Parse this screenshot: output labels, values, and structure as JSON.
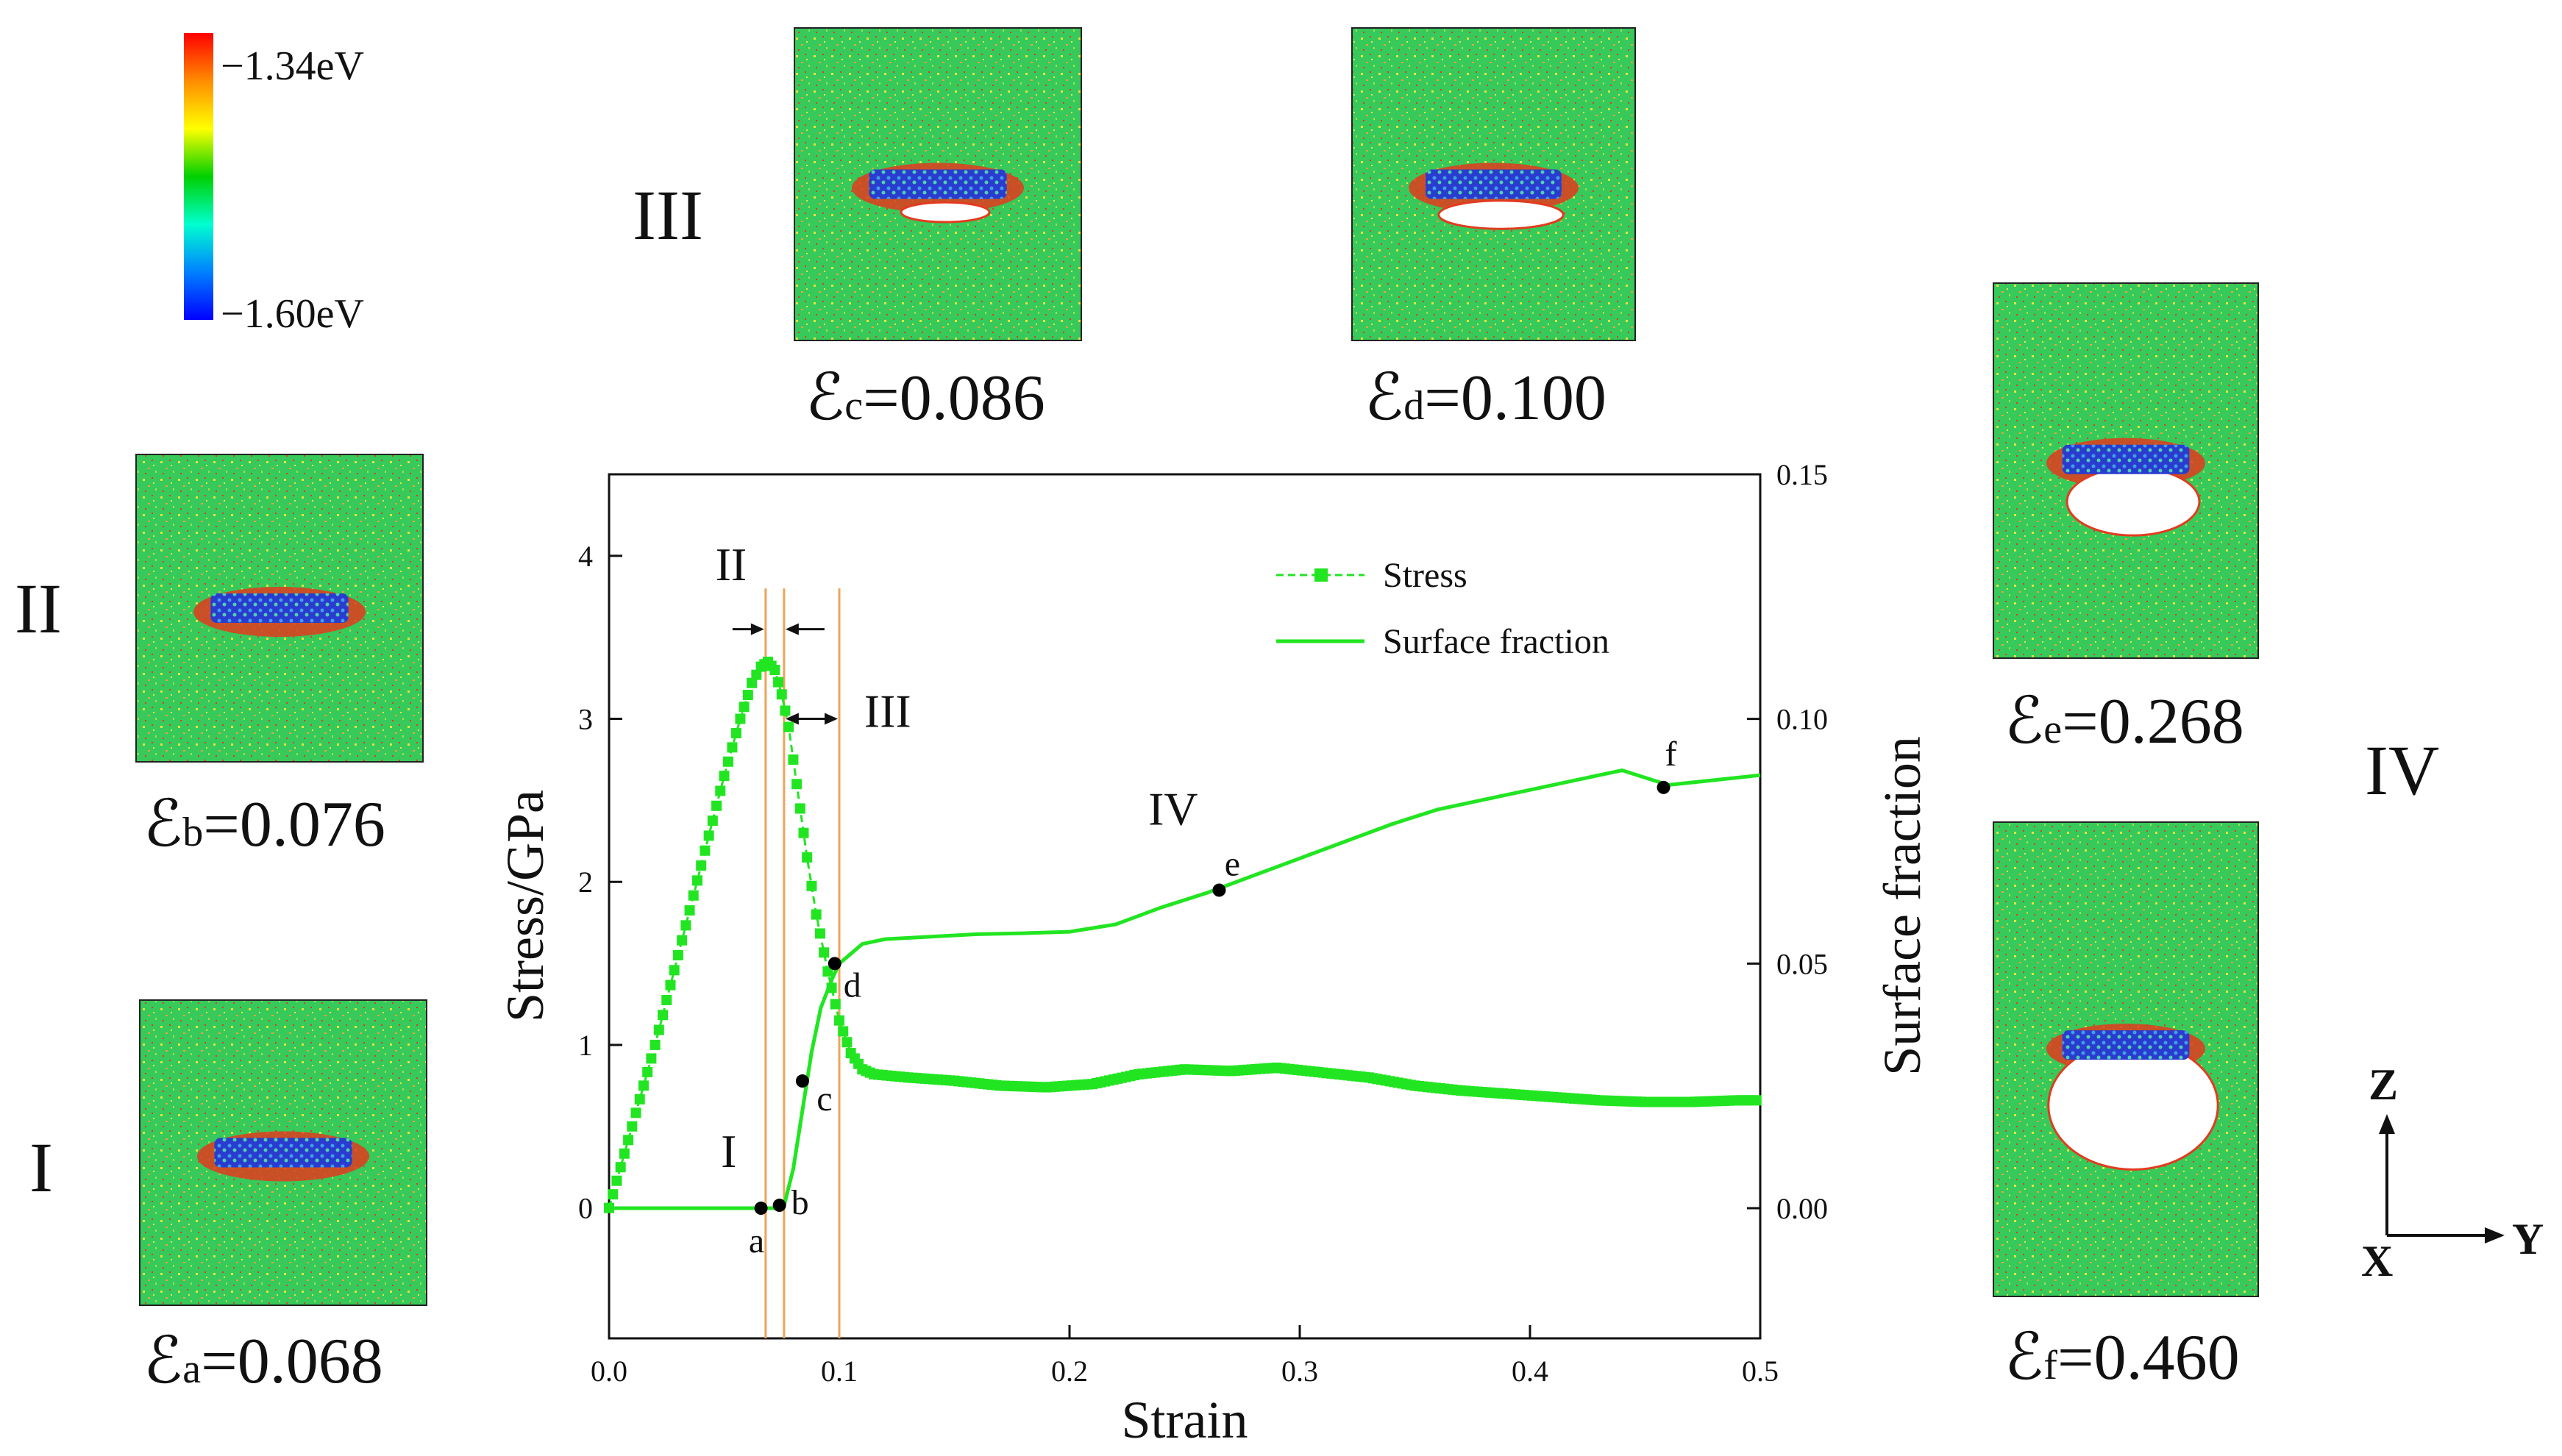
{
  "colors": {
    "curve": "#22e522",
    "marker": "#000000",
    "stage_line": "#f0a35a",
    "axis": "#111111",
    "background": "#ffffff",
    "atom_green": "#37c95a",
    "void": "#ffffff",
    "defect_red": "#e23b1f",
    "cluster_blue": "#2a3ccf"
  },
  "colorbar": {
    "max_label": "−1.34eV",
    "min_label": "−1.60eV",
    "stops": [
      "#ff0000",
      "#ff8c00",
      "#ffff00",
      "#00d000",
      "#00ffd0",
      "#0080ff",
      "#0000ff"
    ]
  },
  "stage_labels": {
    "I": "I",
    "II": "II",
    "III": "III",
    "IV": "IV"
  },
  "snapshots": [
    {
      "id": "a",
      "symbol": "ℰ",
      "subscript": "a",
      "value": "=0.068"
    },
    {
      "id": "b",
      "symbol": "ℰ",
      "subscript": "b",
      "value": "=0.076"
    },
    {
      "id": "c",
      "symbol": "ℰ",
      "subscript": "c",
      "value": "=0.086"
    },
    {
      "id": "d",
      "symbol": "ℰ",
      "subscript": "d",
      "value": "=0.100"
    },
    {
      "id": "e",
      "symbol": "ℰ",
      "subscript": "e",
      "value": "=0.268"
    },
    {
      "id": "f",
      "symbol": "ℰ",
      "subscript": "f",
      "value": "=0.460"
    }
  ],
  "axes_widget": {
    "z": "Z",
    "y": "Y",
    "x": "X"
  },
  "chart_data": {
    "type": "line",
    "title": "",
    "xlabel": "Strain",
    "ylabel": "Stress/GPa",
    "y2label": "Surface fraction",
    "xlim": [
      0.0,
      0.5
    ],
    "ylim": [
      -0.8,
      4.5
    ],
    "y2lim": [
      -0.0266,
      0.15
    ],
    "xticks": [
      0.0,
      0.1,
      0.2,
      0.3,
      0.4,
      0.5
    ],
    "xtick_labels": [
      "0.0",
      "0.1",
      "0.2",
      "0.3",
      "0.4",
      "0.5"
    ],
    "yticks": [
      0,
      1,
      2,
      3,
      4
    ],
    "ytick_labels": [
      "0",
      "1",
      "2",
      "3",
      "4"
    ],
    "y2ticks": [
      0.0,
      0.05,
      0.1,
      0.15
    ],
    "y2tick_labels": [
      "0.00",
      "0.05",
      "0.10",
      "0.15"
    ],
    "legend": {
      "position": "top-right",
      "entries": [
        "Stress",
        "Surface fraction"
      ]
    },
    "series": [
      {
        "name": "Stress",
        "axis": "left",
        "style": "line-square-markers",
        "points": [
          [
            0.0,
            0.0
          ],
          [
            0.01,
            0.5
          ],
          [
            0.02,
            1.0
          ],
          [
            0.03,
            1.55
          ],
          [
            0.04,
            2.1
          ],
          [
            0.05,
            2.65
          ],
          [
            0.057,
            3.0
          ],
          [
            0.062,
            3.22
          ],
          [
            0.066,
            3.32
          ],
          [
            0.069,
            3.35
          ],
          [
            0.072,
            3.3
          ],
          [
            0.075,
            3.15
          ],
          [
            0.078,
            2.95
          ],
          [
            0.08,
            2.75
          ],
          [
            0.083,
            2.45
          ],
          [
            0.086,
            2.15
          ],
          [
            0.09,
            1.8
          ],
          [
            0.095,
            1.45
          ],
          [
            0.1,
            1.15
          ],
          [
            0.105,
            0.95
          ],
          [
            0.11,
            0.85
          ],
          [
            0.115,
            0.82
          ],
          [
            0.13,
            0.8
          ],
          [
            0.15,
            0.78
          ],
          [
            0.17,
            0.75
          ],
          [
            0.19,
            0.74
          ],
          [
            0.21,
            0.76
          ],
          [
            0.23,
            0.82
          ],
          [
            0.25,
            0.85
          ],
          [
            0.27,
            0.84
          ],
          [
            0.29,
            0.86
          ],
          [
            0.31,
            0.83
          ],
          [
            0.33,
            0.8
          ],
          [
            0.35,
            0.75
          ],
          [
            0.37,
            0.72
          ],
          [
            0.39,
            0.7
          ],
          [
            0.41,
            0.68
          ],
          [
            0.43,
            0.66
          ],
          [
            0.45,
            0.65
          ],
          [
            0.47,
            0.65
          ],
          [
            0.49,
            0.66
          ],
          [
            0.5,
            0.66
          ]
        ]
      },
      {
        "name": "Surface fraction",
        "axis": "right",
        "style": "line",
        "points": [
          [
            0.0,
            0.0
          ],
          [
            0.066,
            0.0
          ],
          [
            0.072,
            0.0
          ],
          [
            0.076,
            0.0005
          ],
          [
            0.08,
            0.008
          ],
          [
            0.084,
            0.02
          ],
          [
            0.088,
            0.032
          ],
          [
            0.092,
            0.041
          ],
          [
            0.097,
            0.047
          ],
          [
            0.1,
            0.05
          ],
          [
            0.105,
            0.052
          ],
          [
            0.11,
            0.054
          ],
          [
            0.12,
            0.055
          ],
          [
            0.14,
            0.0555
          ],
          [
            0.16,
            0.056
          ],
          [
            0.18,
            0.0562
          ],
          [
            0.2,
            0.0565
          ],
          [
            0.22,
            0.058
          ],
          [
            0.24,
            0.0615
          ],
          [
            0.26,
            0.0645
          ],
          [
            0.28,
            0.068
          ],
          [
            0.3,
            0.0715
          ],
          [
            0.32,
            0.075
          ],
          [
            0.34,
            0.0785
          ],
          [
            0.36,
            0.0815
          ],
          [
            0.38,
            0.0835
          ],
          [
            0.4,
            0.0855
          ],
          [
            0.42,
            0.0875
          ],
          [
            0.44,
            0.0895
          ],
          [
            0.46,
            0.0865
          ],
          [
            0.48,
            0.0875
          ],
          [
            0.5,
            0.0885
          ]
        ]
      }
    ],
    "marked_points": [
      {
        "label": "a",
        "x": 0.066,
        "y2": 0.0
      },
      {
        "label": "b",
        "x": 0.074,
        "y2": 0.0006
      },
      {
        "label": "c",
        "x": 0.084,
        "y2": 0.026
      },
      {
        "label": "d",
        "x": 0.098,
        "y2": 0.05
      },
      {
        "label": "e",
        "x": 0.265,
        "y2": 0.065
      },
      {
        "label": "f",
        "x": 0.458,
        "y2": 0.086
      }
    ],
    "stage_boundaries": [
      0.068,
      0.076,
      0.1
    ],
    "annotations": [
      {
        "text": "I",
        "x": 0.052,
        "y": 0.25
      },
      {
        "text": "II",
        "x": 0.053,
        "y": 3.85
      },
      {
        "text": "III",
        "x": 0.121,
        "y": 2.95
      },
      {
        "text": "IV",
        "x": 0.245,
        "y": 2.35
      }
    ]
  }
}
